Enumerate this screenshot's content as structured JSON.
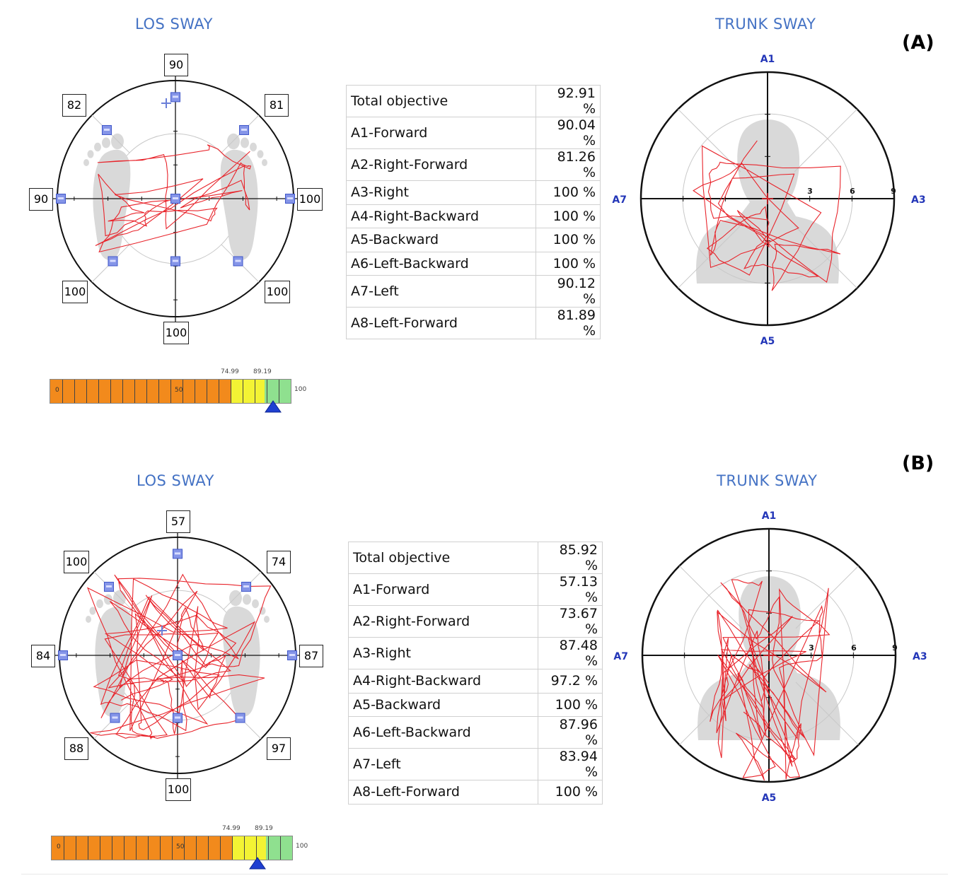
{
  "panels": [
    {
      "label": "(A)",
      "los_title": "LOS SWAY",
      "trunk_title": "TRUNK SWAY",
      "los_dirs": {
        "n": "90",
        "ne": "81",
        "e": "100",
        "se": "100",
        "s": "100",
        "sw": "100",
        "w": "90",
        "nw": "82"
      },
      "table": [
        {
          "name": "Total objective",
          "value": "92.91 %"
        },
        {
          "name": "A1-Forward",
          "value": "90.04 %"
        },
        {
          "name": "A2-Right-Forward",
          "value": "81.26 %"
        },
        {
          "name": "A3-Right",
          "value": "100 %"
        },
        {
          "name": "A4-Right-Backward",
          "value": "100 %"
        },
        {
          "name": "A5-Backward",
          "value": "100 %"
        },
        {
          "name": "A6-Left-Backward",
          "value": "100 %"
        },
        {
          "name": "A7-Left",
          "value": "90.12 %"
        },
        {
          "name": "A8-Left-Forward",
          "value": "81.89 %"
        }
      ],
      "trunk_axes": {
        "top": "A1",
        "right": "A3",
        "bottom": "A5",
        "left": "A7",
        "r1": "3",
        "r2": "6",
        "r3": "9"
      },
      "score_bar": {
        "min_label": "0",
        "mid_label": "50",
        "max_label": "100",
        "t1": "74.99",
        "t2": "89.19",
        "t1_value": 74.99,
        "t2_value": 89.19,
        "marker_value": 92.91
      }
    },
    {
      "label": "(B)",
      "los_title": "LOS SWAY",
      "trunk_title": "TRUNK SWAY",
      "los_dirs": {
        "n": "57",
        "ne": "74",
        "e": "87",
        "se": "97",
        "s": "100",
        "sw": "88",
        "w": "84",
        "nw": "100"
      },
      "table": [
        {
          "name": "Total objective",
          "value": "85.92 %"
        },
        {
          "name": "A1-Forward",
          "value": "57.13 %"
        },
        {
          "name": "A2-Right-Forward",
          "value": "73.67 %"
        },
        {
          "name": "A3-Right",
          "value": "87.48 %"
        },
        {
          "name": "A4-Right-Backward",
          "value": "97.2 %"
        },
        {
          "name": "A5-Backward",
          "value": "100 %"
        },
        {
          "name": "A6-Left-Backward",
          "value": "87.96 %"
        },
        {
          "name": "A7-Left",
          "value": "83.94 %"
        },
        {
          "name": "A8-Left-Forward",
          "value": "100 %"
        }
      ],
      "trunk_axes": {
        "top": "A1",
        "right": "A3",
        "bottom": "A5",
        "left": "A7",
        "r1": "3",
        "r2": "6",
        "r3": "9"
      },
      "score_bar": {
        "min_label": "0",
        "mid_label": "50",
        "max_label": "100",
        "t1": "74.99",
        "t2": "89.19",
        "t1_value": 74.99,
        "t2_value": 89.19,
        "marker_value": 85.92
      }
    }
  ],
  "chart_data": [
    {
      "type": "table",
      "title": "Total objective (A)",
      "categories": [
        "Total objective",
        "A1-Forward",
        "A2-Right-Forward",
        "A3-Right",
        "A4-Right-Backward",
        "A5-Backward",
        "A6-Left-Backward",
        "A7-Left",
        "A8-Left-Forward"
      ],
      "values": [
        92.91,
        90.04,
        81.26,
        100,
        100,
        100,
        100,
        90.12,
        81.89
      ]
    },
    {
      "type": "table",
      "title": "Total objective (B)",
      "categories": [
        "Total objective",
        "A1-Forward",
        "A2-Right-Forward",
        "A3-Right",
        "A4-Right-Backward",
        "A5-Backward",
        "A6-Left-Backward",
        "A7-Left",
        "A8-Left-Forward"
      ],
      "values": [
        85.92,
        57.13,
        73.67,
        87.48,
        97.2,
        100,
        87.96,
        83.94,
        100
      ]
    }
  ],
  "colors": {
    "title": "#4472c4",
    "trace": "#e8242b",
    "target": "#6a7fd8",
    "orange": "#f28a1c",
    "yellow": "#f3f334",
    "green": "#8fe08f",
    "marker": "#1f3fd1",
    "silhouette": "#d9d9d9"
  }
}
